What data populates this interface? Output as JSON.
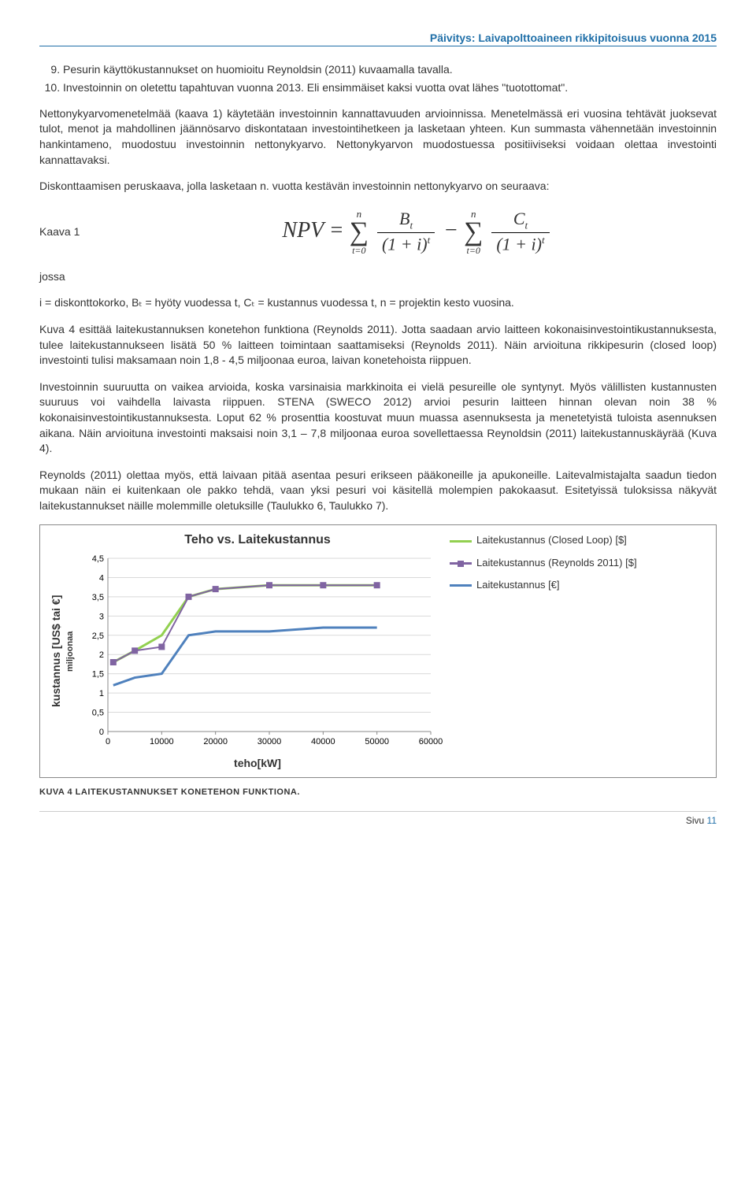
{
  "header": "Päivitys: Laivapolttoaineen rikkipitoisuus vuonna 2015",
  "list": {
    "start": 9,
    "items": [
      "Pesurin käyttökustannukset on huomioitu Reynoldsin (2011) kuvaamalla tavalla.",
      "Investoinnin on oletettu tapahtuvan vuonna 2013. Eli ensimmäiset kaksi vuotta ovat lähes \"tuotottomat\"."
    ]
  },
  "p1": "Nettonykyarvomenetelmää (kaava 1) käytetään investoinnin kannattavuuden arvioinnissa. Menetelmässä eri vuosina tehtävät juoksevat tulot, menot ja mahdollinen jäännösarvo diskontataan investointihetkeen ja lasketaan yhteen. Kun summasta vähennetään investoinnin hankintameno, muodostuu investoinnin nettonykyarvo. Nettonykyarvon muodostuessa positiiviseksi voidaan olettaa investointi kannattavaksi.",
  "p2": "Diskonttaamisen peruskaava, jolla lasketaan n. vuotta kestävän investoinnin nettonykyarvo on seuraava:",
  "formulaLabel": "Kaava 1",
  "jossa": "jossa",
  "p3": "i = diskonttokorko, Bₜ = hyöty vuodessa t, Cₜ = kustannus vuodessa t, n = projektin kesto vuosina.",
  "p4": "Kuva 4 esittää laitekustannuksen konetehon funktiona (Reynolds 2011). Jotta saadaan arvio laitteen kokonaisinvestointikustannuksesta, tulee laitekustannukseen lisätä 50 % laitteen toimintaan saattamiseksi (Reynolds 2011). Näin arvioituna rikkipesurin (closed loop) investointi tulisi maksamaan noin 1,8 - 4,5 miljoonaa euroa, laivan konetehoista riippuen.",
  "p5": "Investoinnin suuruutta on vaikea arvioida, koska varsinaisia markkinoita ei vielä pesureille ole syntynyt. Myös välillisten kustannusten suuruus voi vaihdella laivasta riippuen. STENA (SWECO 2012) arvioi pesurin laitteen hinnan olevan noin 38 % kokonaisinvestointikustannuksesta. Loput 62 % prosenttia koostuvat muun muassa asennuksesta ja menetetyistä tuloista asennuksen aikana. Näin arvioituna investointi maksaisi noin 3,1 – 7,8 miljoonaa euroa sovellettaessa Reynoldsin (2011) laitekustannuskäyrää (Kuva 4).",
  "p6": "Reynolds (2011) olettaa myös, että laivaan pitää asentaa pesuri erikseen pääkoneille ja apukoneille. Laitevalmistajalta saadun tiedon mukaan näin ei kuitenkaan ole pakko tehdä, vaan yksi pesuri voi käsitellä molempien pakokaasut. Esitetyissä tuloksissa näkyvät laitekustannukset näille molemmille oletuksille (Taulukko 6, Taulukko 7).",
  "chart": {
    "title": "Teho vs. Laitekustannus",
    "ylabel_main": "kustannus [US$ tai €]",
    "ylabel_sub": "miljoonaa",
    "xlabel": "teho[kW]",
    "ylim": [
      0,
      4.5
    ],
    "ytick_step": 0.5,
    "yticks": [
      "0",
      "0,5",
      "1",
      "1,5",
      "2",
      "2,5",
      "3",
      "3,5",
      "4",
      "4,5"
    ],
    "xlim": [
      0,
      60000
    ],
    "xtick_step": 10000,
    "xticks": [
      "0",
      "10000",
      "20000",
      "30000",
      "40000",
      "50000",
      "60000"
    ],
    "grid_color": "#d9d9d9",
    "background": "#ffffff",
    "series": [
      {
        "name": "Laitekustannus (Closed Loop) [$]",
        "color": "#92d050",
        "marker": "none",
        "width": 3,
        "points": [
          [
            1000,
            1.8
          ],
          [
            5000,
            2.1
          ],
          [
            10000,
            2.5
          ],
          [
            15000,
            3.5
          ],
          [
            20000,
            3.7
          ],
          [
            30000,
            3.8
          ],
          [
            40000,
            3.8
          ],
          [
            50000,
            3.8
          ]
        ]
      },
      {
        "name": "Laitekustannus (Reynolds 2011) [$]",
        "color": "#8064a2",
        "marker": "square",
        "width": 2,
        "points": [
          [
            1000,
            1.8
          ],
          [
            5000,
            2.1
          ],
          [
            10000,
            2.2
          ],
          [
            15000,
            3.5
          ],
          [
            20000,
            3.7
          ],
          [
            30000,
            3.8
          ],
          [
            40000,
            3.8
          ],
          [
            50000,
            3.8
          ]
        ]
      },
      {
        "name": "Laitekustannus [€]",
        "color": "#4f81bd",
        "marker": "none",
        "width": 3,
        "points": [
          [
            1000,
            1.2
          ],
          [
            5000,
            1.4
          ],
          [
            10000,
            1.5
          ],
          [
            15000,
            2.5
          ],
          [
            20000,
            2.6
          ],
          [
            30000,
            2.6
          ],
          [
            40000,
            2.7
          ],
          [
            50000,
            2.7
          ]
        ]
      }
    ],
    "legend": [
      {
        "color": "#92d050",
        "marker": false,
        "label": "Laitekustannus (Closed Loop) [$]"
      },
      {
        "color": "#8064a2",
        "marker": true,
        "label": "Laitekustannus (Reynolds 2011) [$]"
      },
      {
        "color": "#4f81bd",
        "marker": false,
        "label": "Laitekustannus [€]"
      }
    ]
  },
  "caption": "KUVA 4 LAITEKUSTANNUKSET KONETEHON FUNKTIONA.",
  "footer": {
    "label": "Sivu",
    "num": "11"
  }
}
